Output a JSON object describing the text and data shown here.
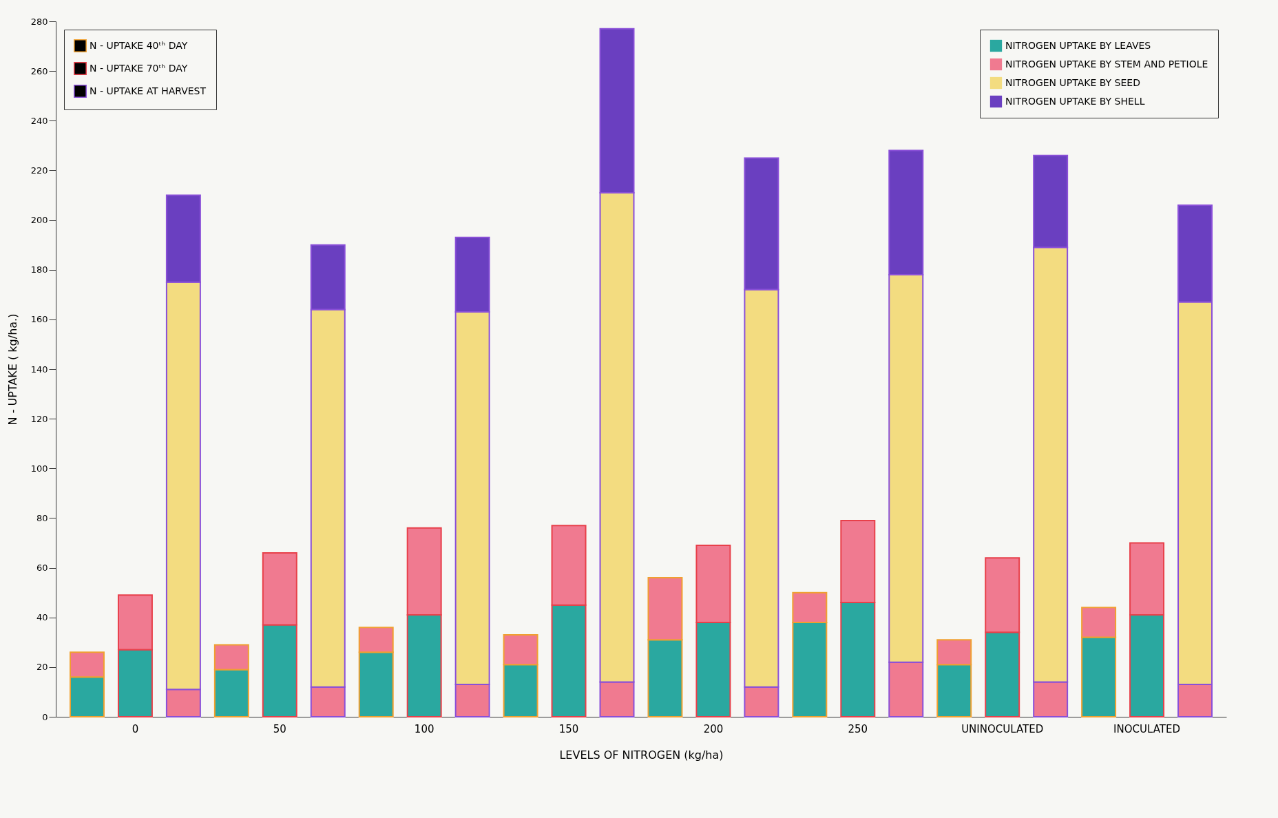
{
  "chart_data": {
    "type": "bar",
    "stacked": true,
    "xlabel": "LEVELS OF NITROGEN (kg/ha)",
    "ylabel": "N - UPTAKE ( kg/ha.)",
    "categories": [
      null,
      "0",
      null,
      null,
      "50",
      null,
      null,
      "100",
      null,
      null,
      "150",
      null,
      null,
      "200",
      null,
      null,
      "250",
      null,
      null,
      "UNINOCULATED",
      null,
      null,
      "INOCULATED",
      null
    ],
    "ylim": [
      0,
      280
    ],
    "yticks": [
      0,
      20,
      40,
      60,
      80,
      100,
      120,
      140,
      160,
      180,
      200,
      220,
      240,
      260,
      280
    ],
    "grid": false,
    "legend": [
      "top left",
      "top right"
    ],
    "series": [
      {
        "name": "NITROGEN UPTAKE BY LEAVES",
        "color": "#2aa8a0",
        "values": [
          16,
          27,
          null,
          19,
          37,
          null,
          26,
          41,
          null,
          21,
          45,
          null,
          31,
          38,
          null,
          38,
          46,
          null,
          21,
          34,
          null,
          32,
          41,
          null
        ]
      },
      {
        "name": "NITROGEN UPTAKE BY STEM AND PETIOLE",
        "color": "#f07a90",
        "values": [
          10,
          22,
          11,
          10,
          29,
          12,
          10,
          35,
          13,
          12,
          32,
          14,
          25,
          31,
          12,
          12,
          33,
          22,
          10,
          30,
          14,
          12,
          29,
          13
        ]
      },
      {
        "name": "NITROGEN UPTAKE BY SEED",
        "color": "#f3dc80",
        "values": [
          null,
          null,
          164,
          null,
          null,
          152,
          null,
          null,
          150,
          null,
          null,
          197,
          null,
          null,
          160,
          null,
          null,
          156,
          null,
          null,
          175,
          null,
          null,
          154
        ]
      },
      {
        "name": "NITROGEN UPTAKE BY SHELL",
        "color": "#6a3fc0",
        "values": [
          null,
          null,
          35,
          null,
          null,
          26,
          null,
          null,
          30,
          null,
          null,
          66,
          null,
          null,
          53,
          null,
          null,
          50,
          null,
          null,
          37,
          null,
          null,
          39
        ]
      },
      {
        "name": "N - UPTAKE 40ᵗʰ DAY",
        "color": "#f0a030",
        "values": [
          null,
          null,
          null,
          null,
          null,
          null,
          null,
          null,
          null,
          null,
          null,
          null,
          null,
          null,
          null,
          null,
          null,
          null,
          null,
          null,
          null,
          null,
          null,
          null
        ]
      },
      {
        "name": "N - UPTAKE 70ᵗʰ DAY",
        "color": "#e8404a",
        "values": [
          null,
          null,
          null,
          null,
          null,
          null,
          null,
          null,
          null,
          null,
          null,
          null,
          null,
          null,
          null,
          null,
          null,
          null,
          null,
          null,
          null,
          null,
          null,
          null
        ]
      },
      {
        "name": "N - UPTAKE AT HARVEST",
        "color": "#8a50d8",
        "values": [
          null,
          null,
          null,
          null,
          null,
          null,
          null,
          null,
          null,
          null,
          null,
          null,
          null,
          null,
          null,
          null,
          null,
          null,
          null,
          null,
          null,
          null,
          null,
          null
        ]
      }
    ]
  }
}
